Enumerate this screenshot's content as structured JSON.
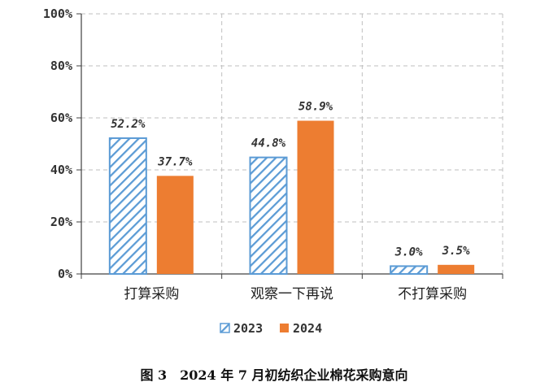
{
  "caption": "图 3　2024 年 7 月初纺织企业棉花采购意向",
  "colors": {
    "series_2023": "#5b9bd5",
    "series_2024": "#ed7d31",
    "grid": "#bfbfbf",
    "axis": "#404040"
  },
  "chart_data": {
    "type": "bar",
    "categories": [
      "打算采购",
      "观察一下再说",
      "不打算采购"
    ],
    "series": [
      {
        "name": "2023",
        "values": [
          52.2,
          44.8,
          3.0
        ],
        "data_labels": [
          "52.2%",
          "44.8%",
          "3.0%"
        ],
        "pattern": "diagonal-hatch"
      },
      {
        "name": "2024",
        "values": [
          37.7,
          58.9,
          3.5
        ],
        "data_labels": [
          "37.7%",
          "58.9%",
          "3.5%"
        ],
        "pattern": "solid"
      }
    ],
    "ylim": [
      0,
      100
    ],
    "y_ticks": [
      0,
      20,
      40,
      60,
      80,
      100
    ],
    "y_tick_labels": [
      "0%",
      "20%",
      "40%",
      "60%",
      "80%",
      "100%"
    ],
    "grid": true,
    "legend_position": "bottom"
  }
}
